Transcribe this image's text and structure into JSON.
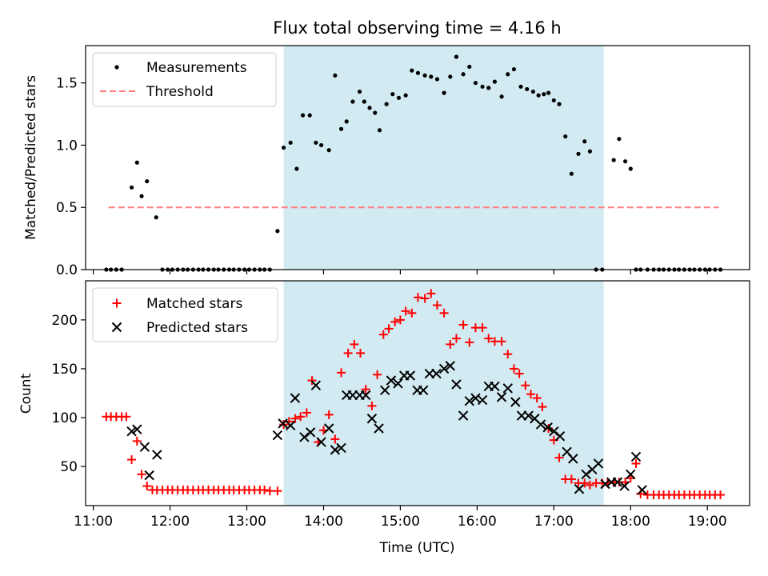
{
  "title": "Flux total observing time = 4.16 h",
  "colors": {
    "measurement": "#000000",
    "threshold": "#ff7f7f",
    "matched": "#ff0000",
    "predicted": "#000000",
    "shade": "#add8e6"
  },
  "chart_data": [
    {
      "type": "scatter",
      "name": "top",
      "ylabel": "Matched/Predicted stars",
      "xlabel": "",
      "xlim": [
        10.9,
        19.55
      ],
      "ylim": [
        0,
        1.8
      ],
      "yticks": [
        0.0,
        0.5,
        1.0,
        1.5
      ],
      "ytick_labels": [
        "0.0",
        "0.5",
        "1.0",
        "1.5"
      ],
      "shaded_x_range": [
        13.48,
        17.65
      ],
      "legend": {
        "loc": "upper left",
        "entries": [
          "Measurements",
          "Threshold"
        ]
      },
      "threshold": {
        "name": "Threshold",
        "value": 0.5,
        "x_range": [
          11.2,
          19.15
        ]
      },
      "series": [
        {
          "name": "Measurements",
          "marker": "dot",
          "x": [
            11.17,
            11.23,
            11.3,
            11.37,
            11.5,
            11.57,
            11.63,
            11.7,
            11.82,
            11.9,
            11.97,
            12.03,
            12.1,
            12.17,
            12.23,
            12.3,
            12.37,
            12.43,
            12.5,
            12.57,
            12.63,
            12.7,
            12.77,
            12.83,
            12.9,
            12.97,
            13.03,
            13.1,
            13.17,
            13.23,
            13.3,
            13.4,
            13.48,
            13.57,
            13.65,
            13.73,
            13.82,
            13.9,
            13.97,
            14.07,
            14.15,
            14.23,
            14.3,
            14.38,
            14.47,
            14.53,
            14.6,
            14.67,
            14.73,
            14.82,
            14.9,
            14.98,
            15.07,
            15.15,
            15.23,
            15.32,
            15.4,
            15.48,
            15.57,
            15.65,
            15.73,
            15.82,
            15.9,
            15.98,
            16.07,
            16.15,
            16.23,
            16.32,
            16.4,
            16.48,
            16.57,
            16.65,
            16.73,
            16.8,
            16.87,
            16.93,
            17.0,
            17.07,
            17.15,
            17.23,
            17.32,
            17.4,
            17.47,
            17.55,
            17.63,
            17.78,
            17.85,
            17.93,
            18.0,
            18.07,
            18.13,
            18.22,
            18.3,
            18.37,
            18.43,
            18.5,
            18.57,
            18.63,
            18.7,
            18.77,
            18.83,
            18.9,
            18.97,
            19.03,
            19.1,
            19.17
          ],
          "y": [
            0,
            0,
            0,
            0,
            0.66,
            0.86,
            0.59,
            0.71,
            0.42,
            0,
            0,
            0,
            0,
            0,
            0,
            0,
            0,
            0,
            0,
            0,
            0,
            0,
            0,
            0,
            0,
            0,
            0,
            0,
            0,
            0,
            0,
            0.31,
            0.98,
            1.02,
            0.81,
            1.24,
            1.24,
            1.02,
            1.0,
            0.96,
            1.56,
            1.13,
            1.19,
            1.35,
            1.43,
            1.35,
            1.3,
            1.26,
            1.12,
            1.33,
            1.41,
            1.38,
            1.4,
            1.6,
            1.58,
            1.56,
            1.55,
            1.53,
            1.42,
            1.55,
            1.71,
            1.57,
            1.63,
            1.5,
            1.47,
            1.46,
            1.51,
            1.39,
            1.57,
            1.61,
            1.47,
            1.45,
            1.43,
            1.4,
            1.41,
            1.42,
            1.36,
            1.33,
            1.07,
            0.77,
            0.93,
            1.03,
            0.95,
            0,
            0,
            0.88,
            1.05,
            0.87,
            0.81,
            0,
            0,
            0,
            0,
            0,
            0,
            0,
            0,
            0,
            0,
            0,
            0,
            0,
            0,
            0,
            0,
            0
          ]
        }
      ]
    },
    {
      "type": "scatter",
      "name": "bottom",
      "ylabel": "Count",
      "xlabel": "Time (UTC)",
      "xlim": [
        10.9,
        19.55
      ],
      "ylim": [
        10,
        240
      ],
      "xticks": [
        11,
        12,
        13,
        14,
        15,
        16,
        17,
        18,
        19
      ],
      "xtick_labels": [
        "11:00",
        "12:00",
        "13:00",
        "14:00",
        "15:00",
        "16:00",
        "17:00",
        "18:00",
        "19:00"
      ],
      "yticks": [
        50,
        100,
        150,
        200
      ],
      "ytick_labels": [
        "50",
        "100",
        "150",
        "200"
      ],
      "shaded_x_range": [
        13.48,
        17.65
      ],
      "legend": {
        "loc": "upper left",
        "entries": [
          "Matched stars",
          "Predicted stars"
        ]
      },
      "series": [
        {
          "name": "Matched stars",
          "marker": "plus",
          "x": [
            11.17,
            11.23,
            11.3,
            11.37,
            11.43,
            11.5,
            11.57,
            11.63,
            11.7,
            11.77,
            11.83,
            11.9,
            11.97,
            12.03,
            12.1,
            12.17,
            12.23,
            12.3,
            12.37,
            12.43,
            12.5,
            12.57,
            12.63,
            12.7,
            12.77,
            12.83,
            12.9,
            12.97,
            13.03,
            13.1,
            13.17,
            13.23,
            13.3,
            13.4,
            13.48,
            13.55,
            13.63,
            13.7,
            13.78,
            13.85,
            13.93,
            14.0,
            14.07,
            14.15,
            14.23,
            14.32,
            14.4,
            14.48,
            14.55,
            14.63,
            14.7,
            14.78,
            14.85,
            14.93,
            15.0,
            15.07,
            15.15,
            15.23,
            15.32,
            15.4,
            15.48,
            15.57,
            15.65,
            15.73,
            15.82,
            15.9,
            15.98,
            16.07,
            16.15,
            16.23,
            16.32,
            16.4,
            16.48,
            16.55,
            16.63,
            16.7,
            16.78,
            16.85,
            16.93,
            17.0,
            17.07,
            17.15,
            17.23,
            17.32,
            17.4,
            17.47,
            17.55,
            17.63,
            17.7,
            17.78,
            17.85,
            17.93,
            18.0,
            18.07,
            18.13,
            18.22,
            18.3,
            18.37,
            18.43,
            18.5,
            18.57,
            18.63,
            18.7,
            18.77,
            18.83,
            18.9,
            18.97,
            19.03,
            19.1,
            19.17
          ],
          "y": [
            101,
            101,
            101,
            101,
            101,
            57,
            76,
            42,
            30,
            26,
            26,
            26,
            26,
            26,
            26,
            26,
            26,
            26,
            26,
            26,
            26,
            26,
            26,
            26,
            26,
            26,
            26,
            26,
            26,
            26,
            26,
            26,
            25,
            25,
            93,
            96,
            99,
            101,
            105,
            138,
            75,
            87,
            103,
            78,
            146,
            166,
            175,
            166,
            129,
            112,
            144,
            185,
            191,
            198,
            200,
            209,
            207,
            223,
            222,
            227,
            215,
            207,
            175,
            181,
            195,
            177,
            192,
            192,
            181,
            178,
            178,
            165,
            150,
            145,
            133,
            124,
            120,
            111,
            89,
            77,
            59,
            37,
            37,
            33,
            33,
            31,
            33,
            33,
            33,
            34,
            34,
            34,
            38,
            53,
            22,
            21,
            21,
            21,
            21,
            21,
            21,
            21,
            21,
            21,
            21,
            21,
            21,
            21,
            21,
            21
          ]
        },
        {
          "name": "Predicted stars",
          "marker": "x",
          "x": [
            11.5,
            11.57,
            11.67,
            11.73,
            11.83,
            13.4,
            13.47,
            13.57,
            13.63,
            13.75,
            13.83,
            13.9,
            13.97,
            14.07,
            14.15,
            14.23,
            14.3,
            14.38,
            14.47,
            14.55,
            14.63,
            14.72,
            14.8,
            14.88,
            14.97,
            15.05,
            15.13,
            15.22,
            15.3,
            15.38,
            15.47,
            15.57,
            15.65,
            15.73,
            15.82,
            15.9,
            15.98,
            16.07,
            16.15,
            16.23,
            16.32,
            16.4,
            16.5,
            16.58,
            16.67,
            16.75,
            16.83,
            16.92,
            17.0,
            17.08,
            17.17,
            17.25,
            17.33,
            17.42,
            17.5,
            17.58,
            17.67,
            17.75,
            17.83,
            17.92,
            18.0,
            18.07,
            18.15
          ],
          "y": [
            86,
            88,
            70,
            41,
            62,
            82,
            94,
            92,
            120,
            80,
            85,
            133,
            75,
            89,
            67,
            69,
            123,
            123,
            123,
            123,
            99,
            89,
            128,
            138,
            135,
            143,
            143,
            128,
            128,
            145,
            145,
            150,
            153,
            134,
            102,
            117,
            120,
            118,
            132,
            132,
            121,
            130,
            116,
            102,
            102,
            99,
            93,
            90,
            86,
            81,
            65,
            58,
            27,
            42,
            47,
            53,
            32,
            34,
            34,
            30,
            42,
            60,
            26
          ]
        }
      ]
    }
  ]
}
